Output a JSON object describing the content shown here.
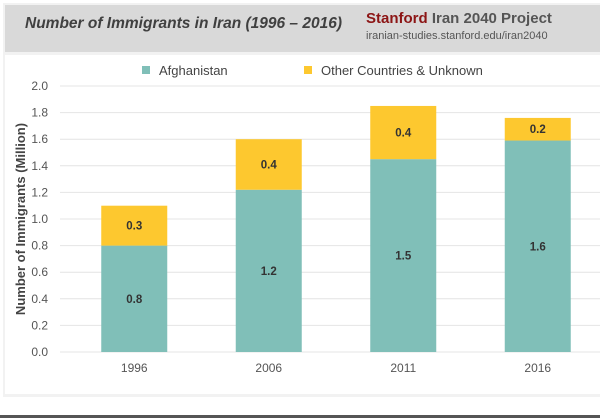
{
  "header": {
    "title": "Number of Immigrants in Iran (1996 – 2016)",
    "brand_red": "Stanford",
    "brand_rest": " Iran 2040 Project",
    "url": "iranian-studies.stanford.edu/iran2040"
  },
  "chart_data": {
    "type": "bar",
    "stacked": true,
    "title": "Number of Immigrants in Iran (1996 – 2016)",
    "xlabel": "",
    "ylabel": "Number of Immigrants (Million)",
    "ylim": [
      0,
      2.0
    ],
    "yticks": [
      "0.0",
      "0.2",
      "0.4",
      "0.6",
      "0.8",
      "1.0",
      "1.2",
      "1.4",
      "1.6",
      "1.8",
      "2.0"
    ],
    "grid": true,
    "legend_position": "top-center",
    "categories": [
      "1996",
      "2006",
      "2011",
      "2016"
    ],
    "series": [
      {
        "name": "Afghanistan",
        "color": "#80bfb8",
        "values": [
          0.8,
          1.22,
          1.45,
          1.59
        ],
        "labels": [
          "0.8",
          "1.2",
          "1.5",
          "1.6"
        ]
      },
      {
        "name": "Other Countries & Unknown",
        "color": "#fdc82f",
        "values": [
          0.3,
          0.38,
          0.4,
          0.17
        ],
        "labels": [
          "0.3",
          "0.4",
          "0.4",
          "0.2"
        ]
      }
    ]
  }
}
